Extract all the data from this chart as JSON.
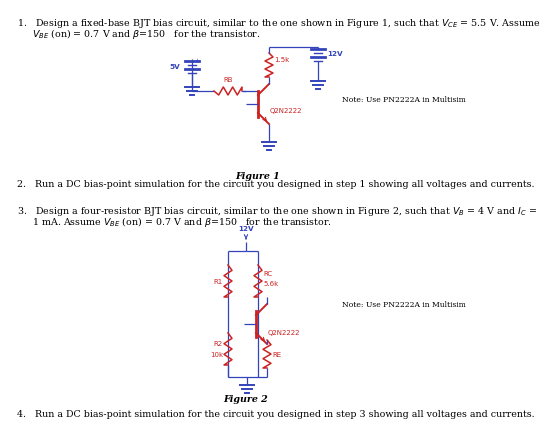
{
  "bg_color": "#ffffff",
  "wire_blue": "#3344bb",
  "wire_red": "#cc2222",
  "comp_red": "#cc2222",
  "text_black": "#000000",
  "fs_body": 6.8,
  "fs_small": 5.2,
  "fs_label": 5.0,
  "fig1_note": "Note: Use PN2222A in Multisim",
  "fig2_note": "Note: Use PN2222A in Multisim",
  "fig1_cap": "Figure 1",
  "fig2_cap": "Figure 2",
  "item1_a": "1.   Design a fixed-base BJT bias circuit, similar to the one shown in Figure 1, such that $V_{CE}$ = 5.5 V. Assume",
  "item1_b": "     $V_{BE}$ (on) = 0.7 V and $\\beta$=150   for the transistor.",
  "item2": "2.   Run a DC bias-point simulation for the circuit you designed in step 1 showing all voltages and currents.",
  "item3_a": "3.   Design a four-resistor BJT bias circuit, similar to the one shown in Figure 2, such that $V_B$ = 4 V and $I_C$ =",
  "item3_b": "     1 mA. Assume $V_{BE}$ (on) = 0.7 V and $\\beta$=150   for the transistor.",
  "item4": "4.   Run a DC bias-point simulation for the circuit you designed in step 3 showing all voltages and currents."
}
